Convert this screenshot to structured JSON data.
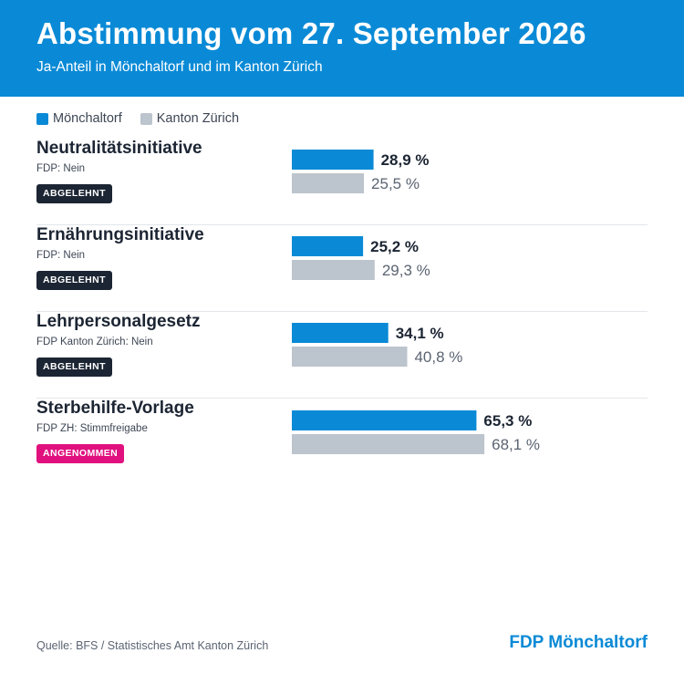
{
  "header": {
    "title": "Abstimmung vom 27. September 2026",
    "subtitle": "Ja-Anteil in Mönchaltorf und im Kanton Zürich"
  },
  "colors": {
    "local": "#0a8ad6",
    "canton": "#bcc4cd",
    "rejected_badge": "#1c2533",
    "accepted_badge": "#e0117f"
  },
  "legend": {
    "local_label": "Mönchaltorf",
    "canton_label": "Kanton Zürich"
  },
  "votes": [
    {
      "title": "Neutralitätsinitiative",
      "recommendation": "FDP: Nein",
      "result": "ABGELEHNT",
      "result_type": "rejected"
    },
    {
      "title": "Ernährungsinitiative",
      "recommendation": "FDP: Nein",
      "result": "ABGELEHNT",
      "result_type": "rejected"
    },
    {
      "title": "Lehrpersonalgesetz",
      "recommendation": "FDP Kanton Zürich: Nein",
      "result": "ABGELEHNT",
      "result_type": "rejected"
    },
    {
      "title": "Sterbehilfe-Vorlage",
      "recommendation": "FDP ZH: Stimmfreigabe",
      "result": "ANGENOMMEN",
      "result_type": "accepted"
    }
  ],
  "chart_data": {
    "type": "bar",
    "orientation": "horizontal",
    "categories": [
      "Neutralitätsinitiative",
      "Ernährungsinitiative",
      "Lehrpersonalgesetz",
      "Sterbehilfe-Vorlage"
    ],
    "series": [
      {
        "name": "Mönchaltorf",
        "values": [
          28.9,
          25.2,
          34.1,
          65.3
        ],
        "labels": [
          "28,9 %",
          "25,2 %",
          "34,1 %",
          "65,3 %"
        ]
      },
      {
        "name": "Kanton Zürich",
        "values": [
          25.5,
          29.3,
          40.8,
          68.1
        ],
        "labels": [
          "25,5 %",
          "29,3 %",
          "40,8 %",
          "68,1 %"
        ]
      }
    ],
    "xlim": [
      0,
      100
    ],
    "grid": false,
    "legend_position": "top-left"
  },
  "footer": {
    "source": "Quelle: BFS / Statistisches Amt Kanton Zürich",
    "brand": "FDP Mönchaltorf"
  }
}
